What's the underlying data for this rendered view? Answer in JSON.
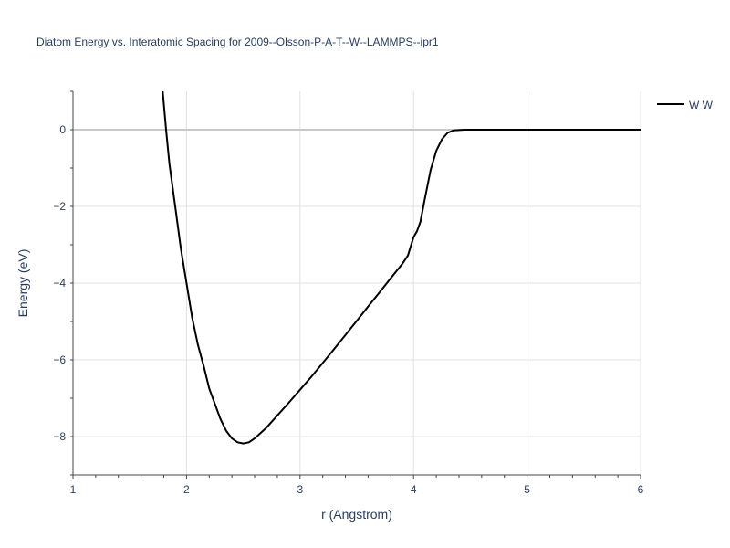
{
  "chart_data": {
    "type": "line",
    "title": "Diatom Energy vs. Interatomic Spacing for 2009--Olsson-P-A-T--W--LAMMPS--ipr1",
    "xlabel": "r (Angstrom)",
    "ylabel": "Energy (eV)",
    "xlim": [
      1,
      6
    ],
    "ylim": [
      -9,
      1
    ],
    "x_ticks": [
      1,
      2,
      3,
      4,
      5,
      6
    ],
    "y_ticks": [
      0,
      -2,
      -4,
      -6,
      -8
    ],
    "x_tick_labels": [
      "1",
      "2",
      "3",
      "4",
      "5",
      "6"
    ],
    "y_tick_labels": [
      "0",
      "−2",
      "−4",
      "−6",
      "−8"
    ],
    "grid": true,
    "legend_position": "top-right",
    "series": [
      {
        "name": "W W",
        "color": "#000000",
        "x": [
          1.79,
          1.82,
          1.85,
          1.9,
          1.95,
          2.0,
          2.05,
          2.1,
          2.15,
          2.2,
          2.25,
          2.3,
          2.35,
          2.4,
          2.45,
          2.5,
          2.55,
          2.6,
          2.7,
          2.8,
          2.9,
          3.0,
          3.1,
          3.2,
          3.3,
          3.4,
          3.5,
          3.6,
          3.7,
          3.8,
          3.9,
          3.95,
          4.0,
          4.03,
          4.06,
          4.1,
          4.15,
          4.2,
          4.25,
          4.3,
          4.35,
          4.4,
          4.45,
          4.5,
          4.6,
          5.0,
          5.5,
          6.0
        ],
        "y": [
          1.0,
          0.0,
          -0.9,
          -2.0,
          -3.1,
          -4.0,
          -4.9,
          -5.6,
          -6.15,
          -6.75,
          -7.15,
          -7.55,
          -7.85,
          -8.05,
          -8.15,
          -8.18,
          -8.15,
          -8.05,
          -7.78,
          -7.45,
          -7.12,
          -6.78,
          -6.44,
          -6.08,
          -5.72,
          -5.35,
          -4.98,
          -4.61,
          -4.24,
          -3.87,
          -3.5,
          -3.28,
          -2.8,
          -2.65,
          -2.4,
          -1.8,
          -1.05,
          -0.55,
          -0.25,
          -0.08,
          -0.02,
          -0.01,
          0.0,
          0.0,
          0.0,
          0.0,
          0.0,
          0.0
        ]
      }
    ]
  }
}
